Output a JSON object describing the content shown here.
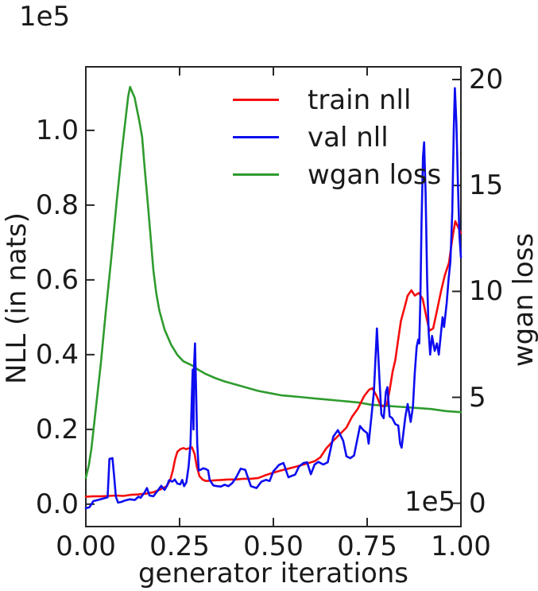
{
  "chart_data": {
    "type": "line",
    "title": "",
    "xlabel": "generator iterations",
    "ylabel_left": "NLL (in nats)",
    "ylabel_right": "wgan loss",
    "x_offset_label": "1e5",
    "y_offset_label": "1e5",
    "xlim": [
      0.0,
      1.0
    ],
    "ylim_left": [
      -0.06,
      1.17
    ],
    "ylim_right": [
      -1.1,
      20.6
    ],
    "x_ticks": [
      0.0,
      0.25,
      0.5,
      0.75,
      1.0
    ],
    "x_tick_labels": [
      "0.00",
      "0.25",
      "0.50",
      "0.75",
      "1.00"
    ],
    "y_ticks_left": [
      0.0,
      0.2,
      0.4,
      0.6,
      0.8,
      1.0
    ],
    "y_tick_labels_left": [
      "0.0",
      "0.2",
      "0.4",
      "0.6",
      "0.8",
      "1.0"
    ],
    "y_ticks_right": [
      0,
      5,
      10,
      15,
      20
    ],
    "y_tick_labels_right": [
      "0",
      "5",
      "10",
      "15",
      "20"
    ],
    "grid": false,
    "tick_direction": "in",
    "legend": {
      "frame": false,
      "position": "upper center"
    },
    "axis_color": "#262626",
    "text_color": "#1a1a1a",
    "series": [
      {
        "name": "wgan loss",
        "color": "#2e9b2e",
        "axis": "right",
        "points": [
          [
            0,
            1.2
          ],
          [
            0.008,
            1.8
          ],
          [
            0.015,
            2.6
          ],
          [
            0.025,
            4.2
          ],
          [
            0.04,
            6.6
          ],
          [
            0.053,
            9.0
          ],
          [
            0.068,
            11.6
          ],
          [
            0.082,
            14.2
          ],
          [
            0.096,
            16.6
          ],
          [
            0.107,
            18.3
          ],
          [
            0.113,
            19.2
          ],
          [
            0.118,
            19.65
          ],
          [
            0.124,
            19.4
          ],
          [
            0.13,
            19.15
          ],
          [
            0.134,
            18.8
          ],
          [
            0.142,
            18.1
          ],
          [
            0.15,
            17.3
          ],
          [
            0.157,
            15.8
          ],
          [
            0.165,
            14.2
          ],
          [
            0.173,
            12.5
          ],
          [
            0.18,
            11.0
          ],
          [
            0.188,
            9.9
          ],
          [
            0.196,
            9.1
          ],
          [
            0.21,
            8.2
          ],
          [
            0.227,
            7.5
          ],
          [
            0.244,
            7.0
          ],
          [
            0.26,
            6.7
          ],
          [
            0.284,
            6.5
          ],
          [
            0.3,
            6.3
          ],
          [
            0.32,
            6.1
          ],
          [
            0.346,
            5.9
          ],
          [
            0.37,
            5.75
          ],
          [
            0.4,
            5.6
          ],
          [
            0.43,
            5.45
          ],
          [
            0.46,
            5.3
          ],
          [
            0.49,
            5.2
          ],
          [
            0.52,
            5.1
          ],
          [
            0.55,
            5.05
          ],
          [
            0.58,
            5.0
          ],
          [
            0.61,
            4.95
          ],
          [
            0.64,
            4.9
          ],
          [
            0.67,
            4.85
          ],
          [
            0.7,
            4.8
          ],
          [
            0.73,
            4.75
          ],
          [
            0.76,
            4.65
          ],
          [
            0.8,
            4.6
          ],
          [
            0.84,
            4.55
          ],
          [
            0.88,
            4.5
          ],
          [
            0.92,
            4.45
          ],
          [
            0.96,
            4.35
          ],
          [
            1.0,
            4.3
          ]
        ]
      },
      {
        "name": "train nll",
        "color": "#f50d0d",
        "axis": "left",
        "points": [
          [
            0,
            0.02
          ],
          [
            0.02,
            0.021
          ],
          [
            0.04,
            0.021
          ],
          [
            0.06,
            0.022
          ],
          [
            0.08,
            0.023
          ],
          [
            0.1,
            0.022
          ],
          [
            0.12,
            0.025
          ],
          [
            0.14,
            0.026
          ],
          [
            0.16,
            0.028
          ],
          [
            0.18,
            0.032
          ],
          [
            0.2,
            0.04
          ],
          [
            0.216,
            0.048
          ],
          [
            0.225,
            0.065
          ],
          [
            0.232,
            0.09
          ],
          [
            0.238,
            0.12
          ],
          [
            0.244,
            0.14
          ],
          [
            0.252,
            0.147
          ],
          [
            0.26,
            0.15
          ],
          [
            0.268,
            0.147
          ],
          [
            0.276,
            0.15
          ],
          [
            0.283,
            0.152
          ],
          [
            0.29,
            0.134
          ],
          [
            0.296,
            0.1
          ],
          [
            0.303,
            0.075
          ],
          [
            0.311,
            0.066
          ],
          [
            0.32,
            0.062
          ],
          [
            0.335,
            0.063
          ],
          [
            0.35,
            0.064
          ],
          [
            0.365,
            0.065
          ],
          [
            0.38,
            0.066
          ],
          [
            0.4,
            0.066
          ],
          [
            0.42,
            0.068
          ],
          [
            0.44,
            0.068
          ],
          [
            0.46,
            0.07
          ],
          [
            0.48,
            0.078
          ],
          [
            0.5,
            0.084
          ],
          [
            0.52,
            0.09
          ],
          [
            0.54,
            0.095
          ],
          [
            0.56,
            0.1
          ],
          [
            0.58,
            0.106
          ],
          [
            0.6,
            0.112
          ],
          [
            0.61,
            0.115
          ],
          [
            0.625,
            0.125
          ],
          [
            0.64,
            0.148
          ],
          [
            0.66,
            0.17
          ],
          [
            0.68,
            0.19
          ],
          [
            0.695,
            0.205
          ],
          [
            0.71,
            0.234
          ],
          [
            0.725,
            0.255
          ],
          [
            0.742,
            0.289
          ],
          [
            0.755,
            0.306
          ],
          [
            0.764,
            0.31
          ],
          [
            0.775,
            0.29
          ],
          [
            0.786,
            0.263
          ],
          [
            0.795,
            0.262
          ],
          [
            0.803,
            0.268
          ],
          [
            0.81,
            0.305
          ],
          [
            0.818,
            0.355
          ],
          [
            0.825,
            0.385
          ],
          [
            0.832,
            0.435
          ],
          [
            0.84,
            0.49
          ],
          [
            0.85,
            0.527
          ],
          [
            0.858,
            0.558
          ],
          [
            0.868,
            0.572
          ],
          [
            0.877,
            0.558
          ],
          [
            0.888,
            0.565
          ],
          [
            0.898,
            0.549
          ],
          [
            0.908,
            0.5
          ],
          [
            0.916,
            0.464
          ],
          [
            0.926,
            0.47
          ],
          [
            0.936,
            0.517
          ],
          [
            0.947,
            0.57
          ],
          [
            0.957,
            0.612
          ],
          [
            0.968,
            0.645
          ],
          [
            0.978,
            0.716
          ],
          [
            0.985,
            0.757
          ],
          [
            0.992,
            0.742
          ],
          [
            1.0,
            0.725
          ]
        ]
      },
      {
        "name": "val nll",
        "color": "#0d0df0",
        "axis": "left",
        "points": [
          [
            0,
            -0.011
          ],
          [
            0.01,
            -0.008
          ],
          [
            0.02,
            0.008
          ],
          [
            0.035,
            0.012
          ],
          [
            0.05,
            0.016
          ],
          [
            0.058,
            0.018
          ],
          [
            0.061,
            0.08
          ],
          [
            0.063,
            0.121
          ],
          [
            0.071,
            0.123
          ],
          [
            0.075,
            0.08
          ],
          [
            0.08,
            0.02
          ],
          [
            0.086,
            0.004
          ],
          [
            0.095,
            0.006
          ],
          [
            0.105,
            0.01
          ],
          [
            0.117,
            0.013
          ],
          [
            0.131,
            0.011
          ],
          [
            0.14,
            0.02
          ],
          [
            0.146,
            0.017
          ],
          [
            0.157,
            0.032
          ],
          [
            0.163,
            0.043
          ],
          [
            0.17,
            0.023
          ],
          [
            0.18,
            0.021
          ],
          [
            0.19,
            0.034
          ],
          [
            0.201,
            0.049
          ],
          [
            0.21,
            0.038
          ],
          [
            0.216,
            0.049
          ],
          [
            0.222,
            0.064
          ],
          [
            0.231,
            0.06
          ],
          [
            0.237,
            0.066
          ],
          [
            0.244,
            0.055
          ],
          [
            0.252,
            0.053
          ],
          [
            0.257,
            0.065
          ],
          [
            0.262,
            0.048
          ],
          [
            0.268,
            0.058
          ],
          [
            0.274,
            0.1
          ],
          [
            0.279,
            0.16
          ],
          [
            0.283,
            0.3
          ],
          [
            0.285,
            0.36
          ],
          [
            0.287,
            0.2
          ],
          [
            0.289,
            0.38
          ],
          [
            0.291,
            0.43
          ],
          [
            0.294,
            0.3
          ],
          [
            0.297,
            0.16
          ],
          [
            0.301,
            0.09
          ],
          [
            0.306,
            0.092
          ],
          [
            0.313,
            0.096
          ],
          [
            0.32,
            0.094
          ],
          [
            0.326,
            0.09
          ],
          [
            0.33,
            0.065
          ],
          [
            0.34,
            0.05
          ],
          [
            0.35,
            0.048
          ],
          [
            0.36,
            0.047
          ],
          [
            0.37,
            0.052
          ],
          [
            0.38,
            0.048
          ],
          [
            0.39,
            0.056
          ],
          [
            0.4,
            0.07
          ],
          [
            0.413,
            0.095
          ],
          [
            0.425,
            0.092
          ],
          [
            0.44,
            0.048
          ],
          [
            0.455,
            0.043
          ],
          [
            0.468,
            0.06
          ],
          [
            0.48,
            0.065
          ],
          [
            0.49,
            0.062
          ],
          [
            0.5,
            0.088
          ],
          [
            0.515,
            0.105
          ],
          [
            0.527,
            0.11
          ],
          [
            0.54,
            0.072
          ],
          [
            0.55,
            0.076
          ],
          [
            0.558,
            0.079
          ],
          [
            0.568,
            0.1
          ],
          [
            0.58,
            0.11
          ],
          [
            0.59,
            0.112
          ],
          [
            0.6,
            0.08
          ],
          [
            0.61,
            0.106
          ],
          [
            0.62,
            0.113
          ],
          [
            0.633,
            0.106
          ],
          [
            0.645,
            0.112
          ],
          [
            0.66,
            0.181
          ],
          [
            0.672,
            0.198
          ],
          [
            0.686,
            0.17
          ],
          [
            0.695,
            0.128
          ],
          [
            0.705,
            0.123
          ],
          [
            0.715,
            0.13
          ],
          [
            0.731,
            0.209
          ],
          [
            0.74,
            0.198
          ],
          [
            0.75,
            0.19
          ],
          [
            0.754,
            0.162
          ],
          [
            0.76,
            0.22
          ],
          [
            0.768,
            0.3
          ],
          [
            0.776,
            0.47
          ],
          [
            0.783,
            0.33
          ],
          [
            0.788,
            0.24
          ],
          [
            0.794,
            0.23
          ],
          [
            0.8,
            0.3
          ],
          [
            0.804,
            0.313
          ],
          [
            0.81,
            0.235
          ],
          [
            0.817,
            0.23
          ],
          [
            0.825,
            0.214
          ],
          [
            0.833,
            0.21
          ],
          [
            0.838,
            0.162
          ],
          [
            0.842,
            0.151
          ],
          [
            0.852,
            0.234
          ],
          [
            0.858,
            0.268
          ],
          [
            0.866,
            0.22
          ],
          [
            0.872,
            0.26
          ],
          [
            0.877,
            0.35
          ],
          [
            0.882,
            0.42
          ],
          [
            0.886,
            0.44
          ],
          [
            0.889,
            0.43
          ],
          [
            0.892,
            0.55
          ],
          [
            0.895,
            0.75
          ],
          [
            0.899,
            0.93
          ],
          [
            0.902,
            0.968
          ],
          [
            0.906,
            0.83
          ],
          [
            0.91,
            0.6
          ],
          [
            0.914,
            0.46
          ],
          [
            0.918,
            0.4
          ],
          [
            0.923,
            0.45
          ],
          [
            0.93,
            0.41
          ],
          [
            0.936,
            0.43
          ],
          [
            0.941,
            0.4
          ],
          [
            0.947,
            0.46
          ],
          [
            0.951,
            0.5
          ],
          [
            0.955,
            0.474
          ],
          [
            0.962,
            0.538
          ],
          [
            0.967,
            0.6
          ],
          [
            0.972,
            0.65
          ],
          [
            0.977,
            0.78
          ],
          [
            0.981,
            1.0
          ],
          [
            0.984,
            1.113
          ],
          [
            0.988,
            1.02
          ],
          [
            0.992,
            0.86
          ],
          [
            0.996,
            0.72
          ],
          [
            1.0,
            0.66
          ]
        ]
      }
    ],
    "legend_order": [
      "train nll",
      "val nll",
      "wgan loss"
    ]
  }
}
